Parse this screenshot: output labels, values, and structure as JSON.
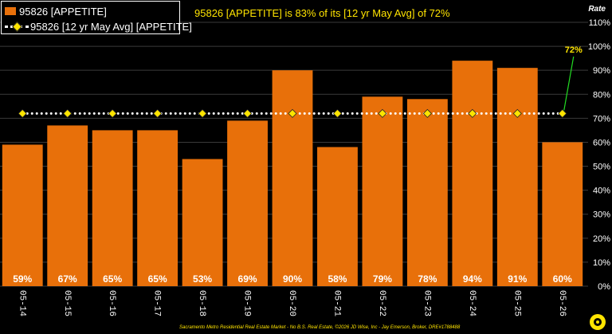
{
  "headline": "95826 [APPETITE] is 83% of its [12 yr May Avg] of 72%",
  "rate_axis_title": "Rate",
  "footer": "Sacramento Metro Residential Real Estate Market - No B.S. Real Estate, ©2026 JD Wise, Inc - Jay Emerson, Broker, DRE#1788488",
  "legend": [
    {
      "label": "95826 [APPETITE]",
      "type": "bar",
      "color": "#e8700a"
    },
    {
      "label": "95826 [12 yr May Avg] [APPETITE]",
      "type": "dotted-line-diamond",
      "color": "#ffe400"
    }
  ],
  "avg_callout": "72%",
  "colors": {
    "bar": "#e8700a",
    "avg_marker": "#ffe400",
    "avg_line": "#ffffff",
    "callout_line": "#22dd22",
    "background": "#000000"
  },
  "chart_data": {
    "type": "bar",
    "categories": [
      "05-14",
      "05-15",
      "05-16",
      "05-17",
      "05-18",
      "05-19",
      "05-20",
      "05-21",
      "05-22",
      "05-23",
      "05-24",
      "05-25",
      "05-26"
    ],
    "series": [
      {
        "name": "95826 [APPETITE]",
        "type": "bar",
        "values": [
          59,
          67,
          65,
          65,
          53,
          69,
          90,
          58,
          79,
          78,
          94,
          91,
          60
        ],
        "labels": [
          "59%",
          "67%",
          "65%",
          "65%",
          "53%",
          "69%",
          "90%",
          "58%",
          "79%",
          "78%",
          "94%",
          "91%",
          "60%"
        ]
      },
      {
        "name": "95826 [12 yr May Avg] [APPETITE]",
        "type": "line",
        "values": [
          72,
          72,
          72,
          72,
          72,
          72,
          72,
          72,
          72,
          72,
          72,
          72,
          72
        ]
      }
    ],
    "y_ticks": [
      "0%",
      "10%",
      "20%",
      "30%",
      "40%",
      "50%",
      "60%",
      "70%",
      "80%",
      "90%",
      "100%",
      "110%"
    ],
    "ylim": [
      0,
      110
    ],
    "yaxis_side": "right",
    "grid": "horizontal",
    "legend_position": "top-left"
  }
}
